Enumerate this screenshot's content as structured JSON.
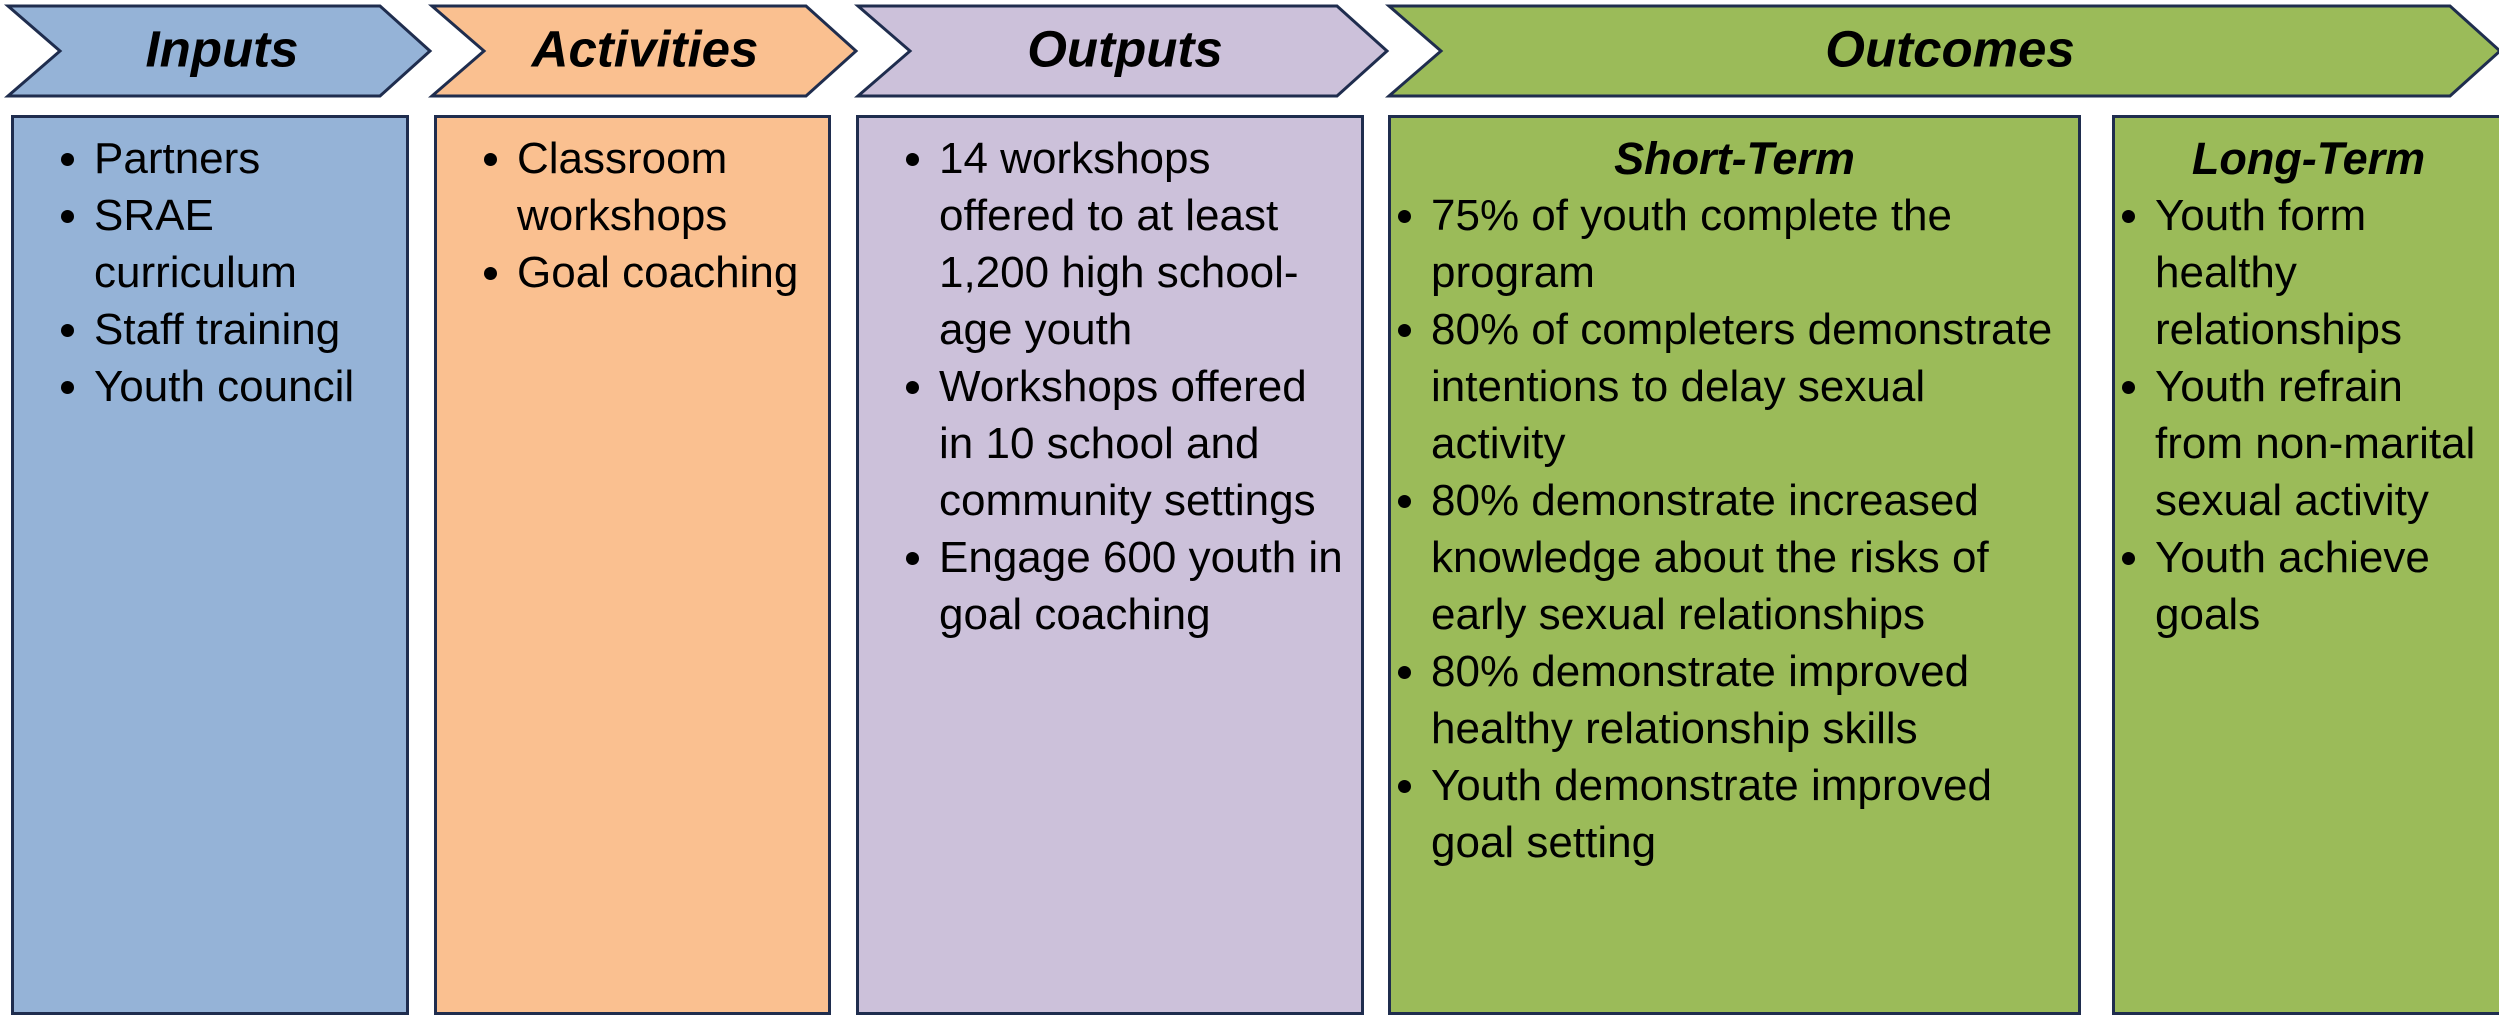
{
  "columns": [
    {
      "header": "Inputs",
      "items": [
        "Partners",
        "SRAE curriculum",
        "Staff training",
        "Youth council"
      ]
    },
    {
      "header": "Activities",
      "items": [
        "Classroom workshops",
        "Goal coaching"
      ]
    },
    {
      "header": "Outputs",
      "items": [
        "14 workshops offered to at least 1,200 high school-age youth",
        "Workshops offered in 10 school and community settings",
        "Engage 600 youth in goal coaching"
      ]
    }
  ],
  "outcomes": {
    "header": "Outcomes",
    "short_term": {
      "title": "Short-Term",
      "items": [
        "75% of youth complete the program",
        "80% of completers demonstrate intentions to delay sexual activity",
        "80% demonstrate increased knowledge about the risks of early sexual relationships",
        "80% demonstrate improved healthy relationship skills",
        "Youth demonstrate improved goal setting"
      ]
    },
    "long_term": {
      "title": "Long-Term",
      "items": [
        "Youth form healthy relationships",
        "Youth refrain from non-marital sexual activity",
        "Youth achieve goals"
      ]
    }
  }
}
